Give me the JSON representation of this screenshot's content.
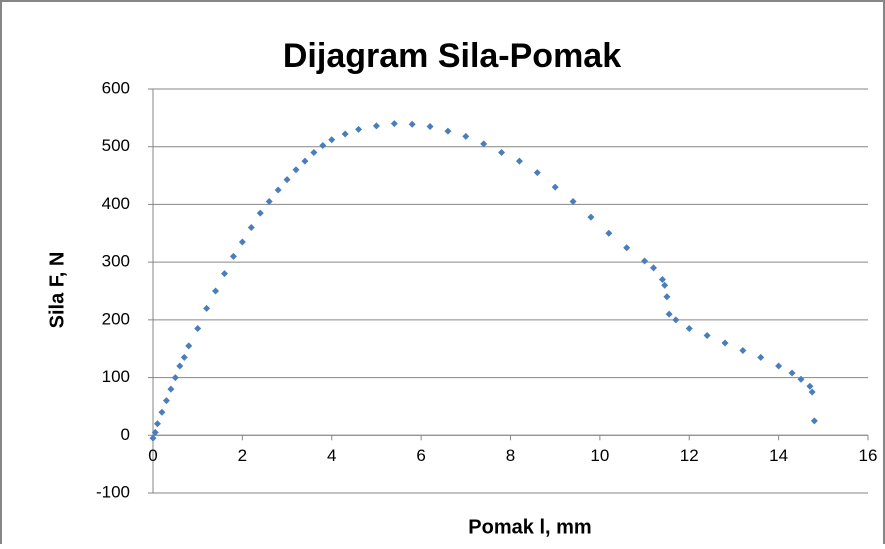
{
  "chart_data": {
    "type": "scatter",
    "title": "Dijagram Sila-Pomak",
    "xlabel": "Pomak l, mm",
    "ylabel": "Sila F, N",
    "color": "#4a7ebb",
    "grid": true,
    "xlim": [
      0,
      16
    ],
    "xticks": [
      0,
      2,
      4,
      6,
      8,
      10,
      12,
      14,
      16
    ],
    "ylim": [
      -100,
      600
    ],
    "yticks": [
      -100,
      0,
      100,
      200,
      300,
      400,
      500,
      600
    ],
    "x": [
      0,
      0.05,
      0.1,
      0.2,
      0.3,
      0.4,
      0.5,
      0.6,
      0.7,
      0.8,
      1.0,
      1.2,
      1.4,
      1.6,
      1.8,
      2.0,
      2.2,
      2.4,
      2.6,
      2.8,
      3.0,
      3.2,
      3.4,
      3.6,
      3.8,
      4.0,
      4.3,
      4.6,
      5.0,
      5.4,
      5.8,
      6.2,
      6.6,
      7.0,
      7.4,
      7.8,
      8.2,
      8.6,
      9.0,
      9.4,
      9.8,
      10.2,
      10.6,
      11.0,
      11.2,
      11.4,
      11.45,
      11.5,
      11.55,
      11.7,
      12.0,
      12.4,
      12.8,
      13.2,
      13.6,
      14.0,
      14.3,
      14.5,
      14.7,
      14.75,
      14.8
    ],
    "values": [
      -5,
      5,
      20,
      40,
      60,
      80,
      100,
      120,
      135,
      155,
      185,
      220,
      250,
      280,
      310,
      335,
      360,
      385,
      405,
      425,
      443,
      460,
      475,
      490,
      502,
      512,
      522,
      530,
      536,
      540,
      539,
      535,
      527,
      518,
      505,
      490,
      475,
      455,
      430,
      405,
      378,
      350,
      325,
      302,
      290,
      270,
      260,
      240,
      210,
      200,
      185,
      173,
      160,
      147,
      135,
      120,
      108,
      97,
      85,
      75,
      25
    ]
  }
}
